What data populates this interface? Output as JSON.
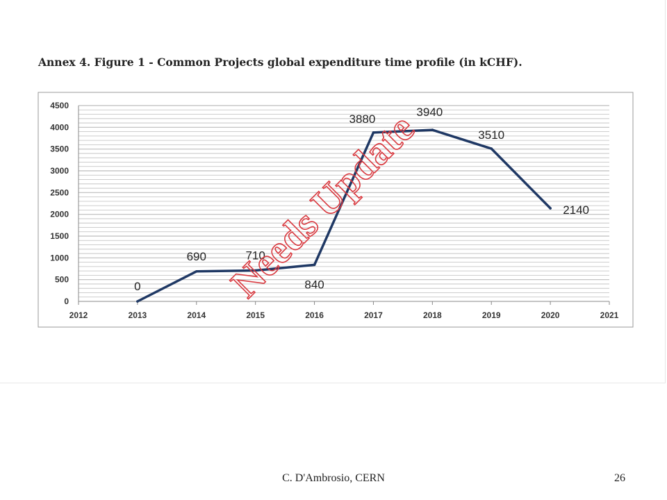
{
  "caption": "Annex 4. Figure 1 - Common Projects global expenditure time profile (in kCHF).",
  "watermark": "Needs Update",
  "footer": {
    "author": "C. D'Ambrosio, CERN",
    "page": "26"
  },
  "colors": {
    "line": "#1f3864",
    "watermark": "#d9383e",
    "grid": "#bdbdbd",
    "axis": "#888888"
  },
  "chart_data": {
    "type": "line",
    "title": "",
    "xlabel": "",
    "ylabel": "",
    "x": [
      2013,
      2014,
      2015,
      2016,
      2017,
      2018,
      2019,
      2020
    ],
    "series": [
      {
        "values": [
          0,
          690,
          710,
          840,
          3880,
          3940,
          3510,
          2140
        ]
      }
    ],
    "xlim": [
      2012,
      2021
    ],
    "ylim": [
      0,
      4500
    ],
    "xticks": [
      "2012",
      "2013",
      "2014",
      "2015",
      "2016",
      "2017",
      "2018",
      "2019",
      "2020",
      "2021"
    ],
    "yticks": [
      "0",
      "500",
      "1000",
      "1500",
      "2000",
      "2500",
      "3000",
      "3500",
      "4000",
      "4500"
    ],
    "data_labels": [
      "0",
      "690",
      "710",
      "840",
      "3880",
      "3940",
      "3510",
      "2140"
    ],
    "grid": true,
    "legend": "none"
  }
}
